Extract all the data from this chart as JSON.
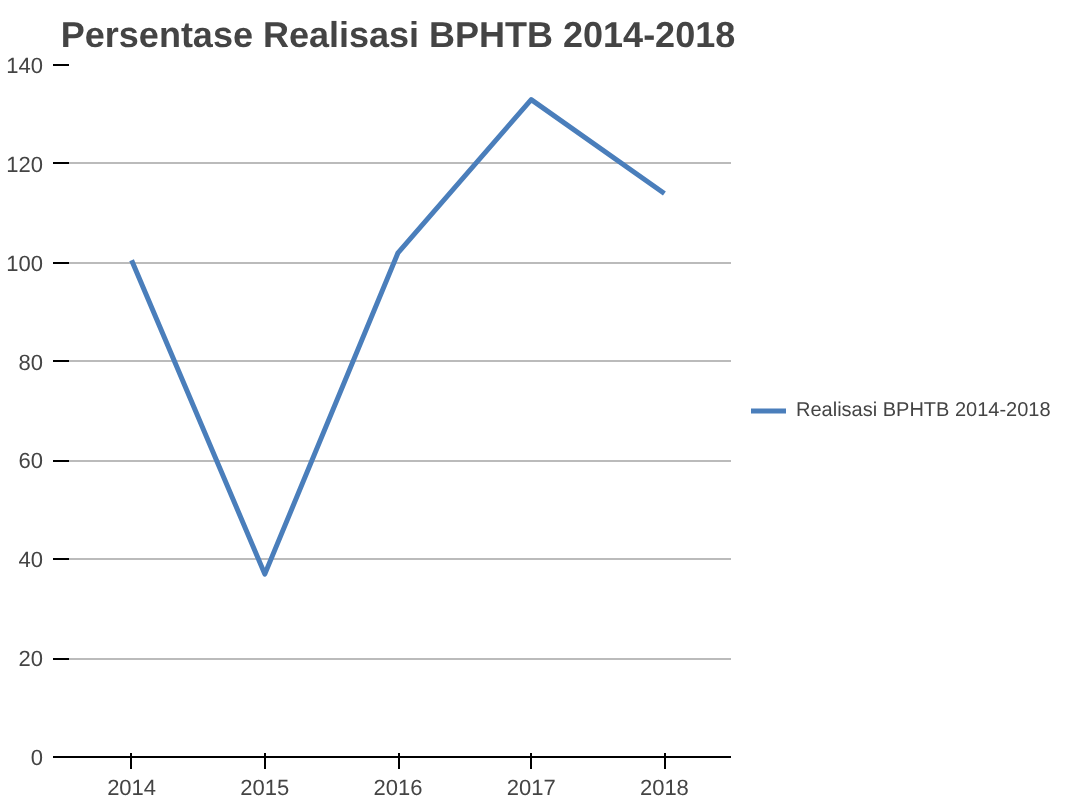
{
  "chart_data": {
    "type": "line",
    "title": "Persentase Realisasi BPHTB 2014-2018",
    "categories": [
      "2014",
      "2015",
      "2016",
      "2017",
      "2018"
    ],
    "series": [
      {
        "name": "Realisasi BPHTB 2014-2018",
        "color": "#4a7ebb",
        "values": [
          100.5,
          37,
          102,
          133,
          114
        ]
      }
    ],
    "ylim": [
      0,
      140
    ],
    "yticks": [
      0,
      20,
      40,
      60,
      80,
      100,
      120,
      140
    ],
    "grid": "y",
    "legend": "right",
    "marker": "none",
    "line_style": "solid"
  }
}
